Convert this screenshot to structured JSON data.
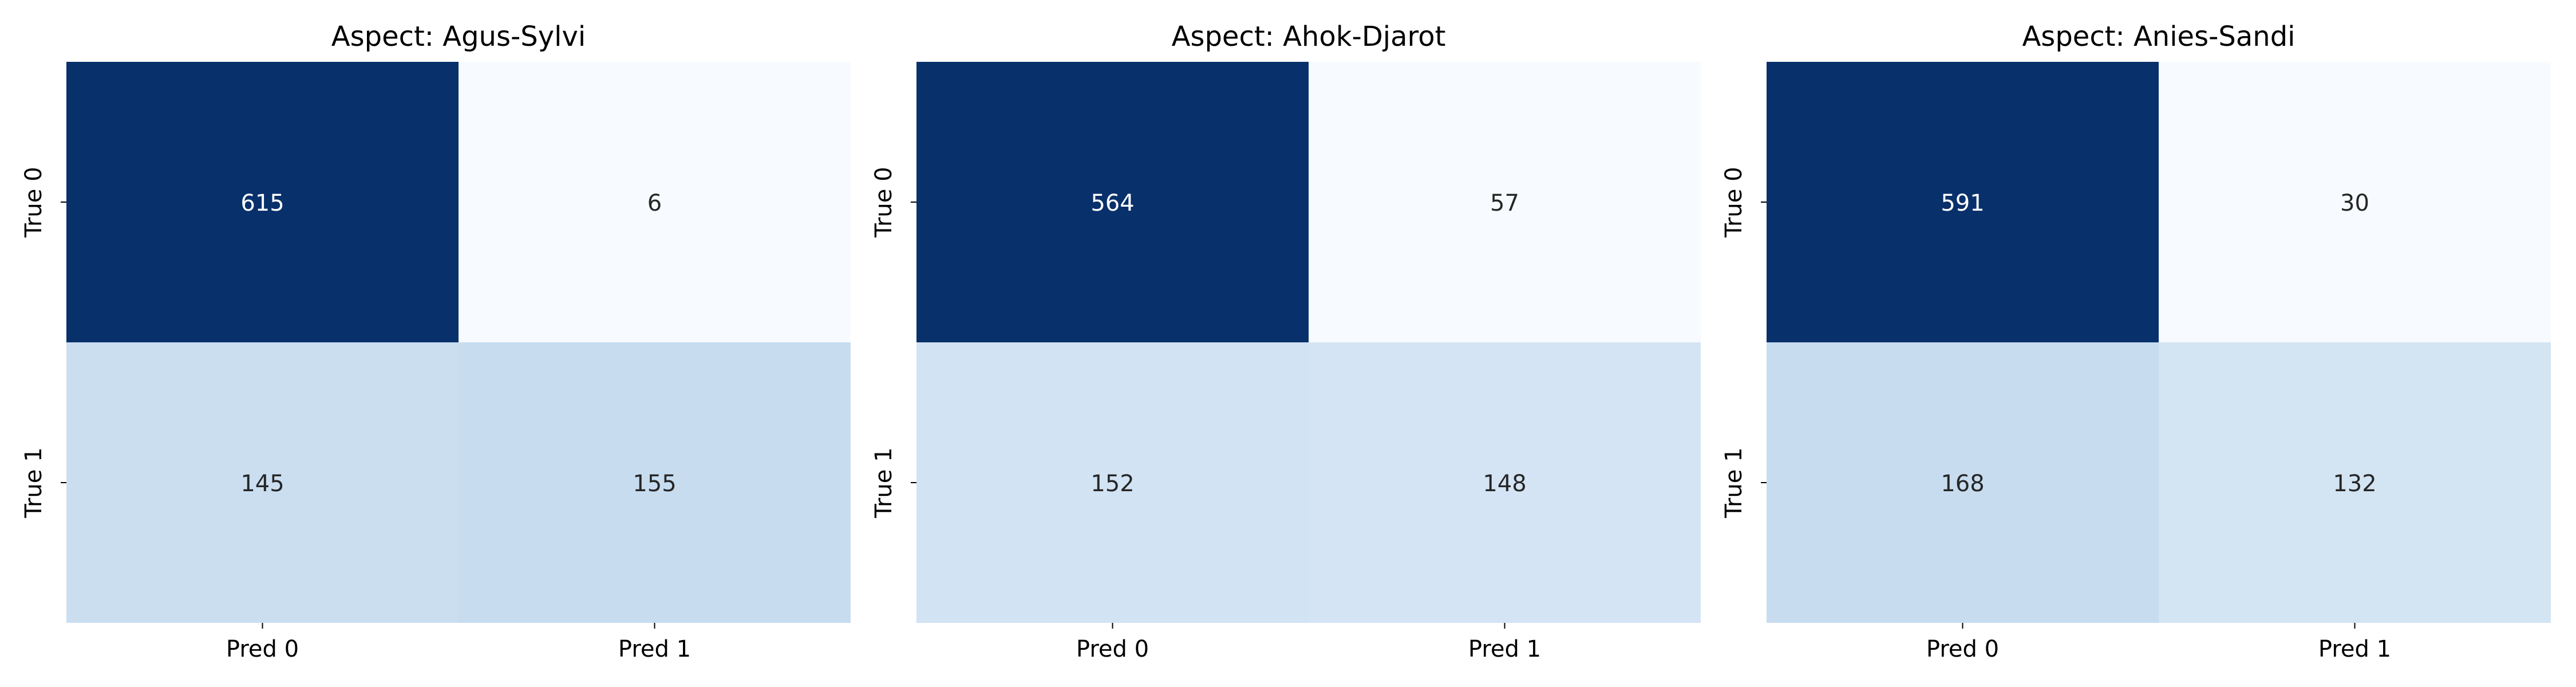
{
  "chart_data": [
    {
      "type": "heatmap",
      "title": "Aspect: Agus-Sylvi",
      "x_tick_labels": [
        "Pred 0",
        "Pred 1"
      ],
      "y_tick_labels": [
        "True 0",
        "True 1"
      ],
      "values": [
        [
          615,
          6
        ],
        [
          145,
          155
        ]
      ],
      "colormap": "Blues",
      "color_range": [
        6,
        615
      ],
      "colorbar": false
    },
    {
      "type": "heatmap",
      "title": "Aspect: Ahok-Djarot",
      "x_tick_labels": [
        "Pred 0",
        "Pred 1"
      ],
      "y_tick_labels": [
        "True 0",
        "True 1"
      ],
      "values": [
        [
          564,
          57
        ],
        [
          152,
          148
        ]
      ],
      "colormap": "Blues",
      "color_range": [
        57,
        564
      ],
      "colorbar": false
    },
    {
      "type": "heatmap",
      "title": "Aspect: Anies-Sandi",
      "x_tick_labels": [
        "Pred 0",
        "Pred 1"
      ],
      "y_tick_labels": [
        "True 0",
        "True 1"
      ],
      "values": [
        [
          591,
          30
        ],
        [
          168,
          132
        ]
      ],
      "colormap": "Blues",
      "color_range": [
        30,
        591
      ],
      "colorbar": false
    }
  ]
}
